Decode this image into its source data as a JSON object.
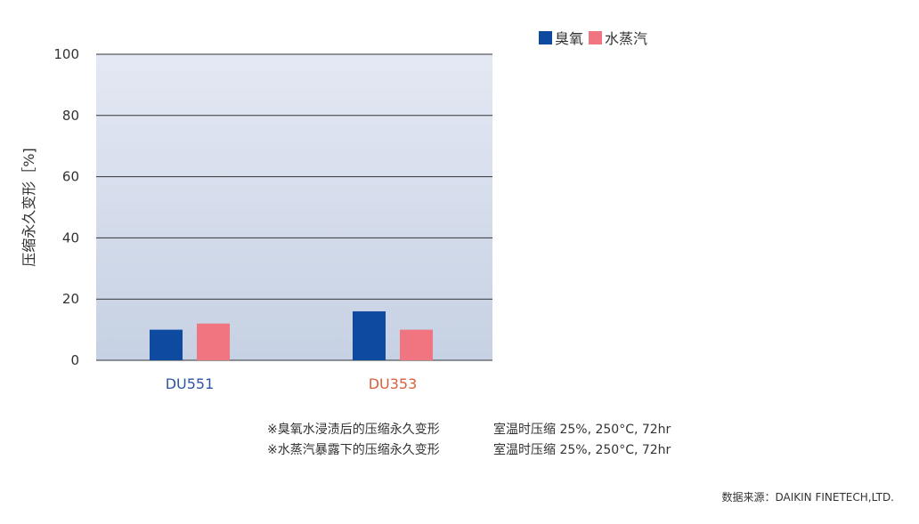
{
  "chart_data": {
    "type": "bar",
    "categories": [
      "DU551",
      "DU353"
    ],
    "category_colors": [
      "#2f56a6",
      "#d9603c"
    ],
    "series": [
      {
        "name": "臭氧",
        "color": "#0e4aa0",
        "values": [
          10,
          16
        ]
      },
      {
        "name": "水蒸汽",
        "color": "#f07580",
        "values": [
          12,
          10
        ]
      }
    ],
    "ylabel": "压缩永久变形［%]",
    "ylim": [
      0,
      100
    ],
    "yticks": [
      0,
      20,
      40,
      60,
      80,
      100
    ],
    "grid": true,
    "legend_position": "top-right"
  },
  "notes": [
    {
      "left": "※臭氧水浸渍后的压缩永久变形",
      "right": "室温时压缩 25%, 250°C, 72hr"
    },
    {
      "left": "※水蒸汽暴露下的压缩永久变形",
      "right": "室温时压缩 25%, 250°C, 72hr"
    }
  ],
  "source": "数据来源：DAIKIN FINETECH,LTD."
}
